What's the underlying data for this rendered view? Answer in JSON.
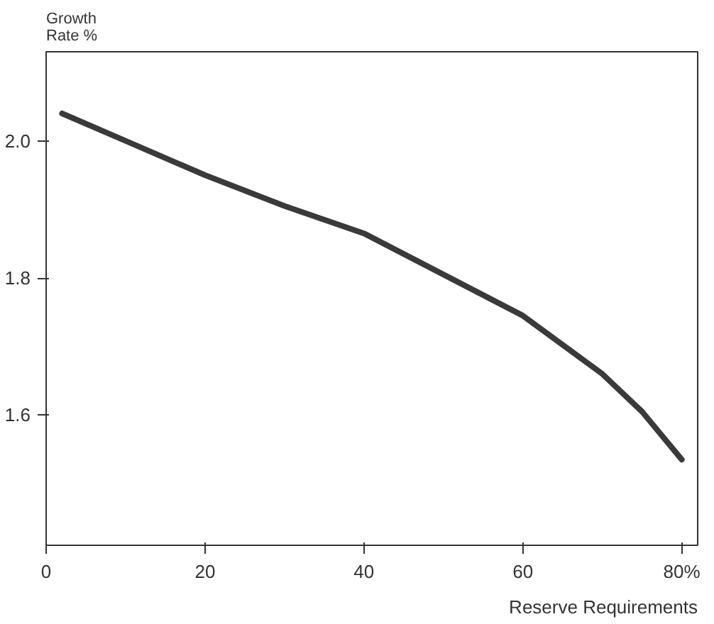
{
  "chart_data": {
    "type": "line",
    "ylabel": "Growth\nRate %",
    "xlabel": "Reserve Requirements",
    "x": [
      2,
      10,
      20,
      30,
      40,
      50,
      60,
      70,
      75,
      80
    ],
    "series": [
      {
        "color": "#3a3a3a",
        "values": [
          2.04,
          2.0,
          1.95,
          1.905,
          1.865,
          1.805,
          1.745,
          1.66,
          1.605,
          1.535
        ]
      }
    ],
    "xlim": [
      0,
      82
    ],
    "ylim": [
      1.41,
      2.13
    ],
    "xticks": [
      0,
      20,
      40,
      60,
      {
        "value": 80,
        "label": "80%"
      }
    ],
    "yticks": [
      1.6,
      1.8,
      {
        "value": 2.0,
        "label": "2.0"
      }
    ],
    "grid": false,
    "marker": "none",
    "line_style": "solid"
  }
}
